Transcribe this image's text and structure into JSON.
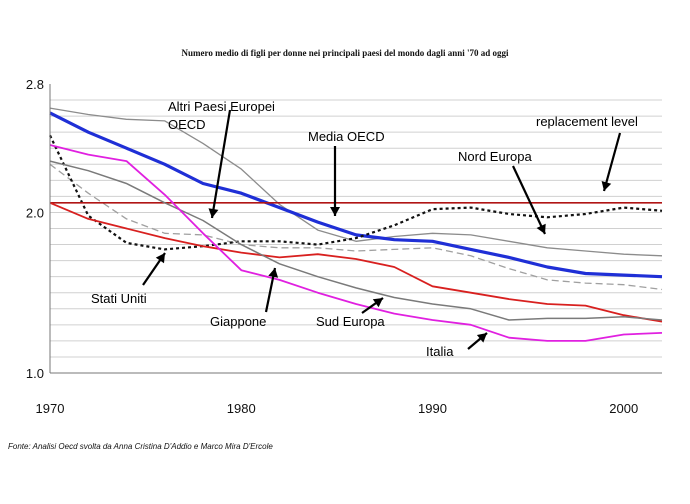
{
  "chart_data": {
    "type": "line",
    "title": "Numero medio di figli per donne nei principali paesi del mondo dagli anni '70 ad oggi",
    "xlabel": "",
    "ylabel": "",
    "xlim": [
      1970,
      2002
    ],
    "ylim": [
      1.0,
      2.8
    ],
    "x_ticks": [
      "1970",
      "1980",
      "1990",
      "2000"
    ],
    "y_ticks": [
      "1.0",
      "2.0",
      "2.8"
    ],
    "grid": true,
    "series": [
      {
        "name": "Altri Paesi Europei OECD",
        "color": "#8c8c8c",
        "width": 1.3,
        "dash": "",
        "x": [
          1970,
          1972,
          1974,
          1976,
          1978,
          1980,
          1982,
          1984,
          1986,
          1988,
          1990,
          1992,
          1994,
          1996,
          1998,
          2000,
          2002
        ],
        "values": [
          2.65,
          2.61,
          2.58,
          2.57,
          2.43,
          2.27,
          2.05,
          1.89,
          1.82,
          1.85,
          1.87,
          1.86,
          1.82,
          1.78,
          1.76,
          1.74,
          1.73
        ]
      },
      {
        "name": "Media OECD",
        "color": "#1f2fd6",
        "width": 3.2,
        "dash": "",
        "x": [
          1970,
          1972,
          1974,
          1976,
          1978,
          1980,
          1982,
          1984,
          1986,
          1988,
          1990,
          1992,
          1994,
          1996,
          1998,
          2000,
          2002
        ],
        "values": [
          2.62,
          2.5,
          2.4,
          2.3,
          2.18,
          2.12,
          2.03,
          1.94,
          1.86,
          1.83,
          1.82,
          1.77,
          1.72,
          1.66,
          1.62,
          1.61,
          1.6
        ]
      },
      {
        "name": "Nord Europa",
        "color": "#a0a0a0",
        "width": 1.3,
        "dash": "7,4",
        "x": [
          1970,
          1972,
          1974,
          1976,
          1978,
          1980,
          1982,
          1984,
          1986,
          1988,
          1990,
          1992,
          1994,
          1996,
          1998,
          2000,
          2002
        ],
        "values": [
          2.3,
          2.12,
          1.96,
          1.87,
          1.86,
          1.8,
          1.78,
          1.78,
          1.76,
          1.77,
          1.78,
          1.73,
          1.65,
          1.58,
          1.56,
          1.55,
          1.52
        ]
      },
      {
        "name": "Stati Uniti",
        "color": "#111111",
        "width": 2.2,
        "dash": "3,3",
        "x": [
          1970,
          1972,
          1974,
          1976,
          1978,
          1980,
          1982,
          1984,
          1986,
          1988,
          1990,
          1992,
          1994,
          1996,
          1998,
          2000,
          2002
        ],
        "values": [
          2.48,
          1.98,
          1.81,
          1.77,
          1.79,
          1.82,
          1.82,
          1.8,
          1.84,
          1.92,
          2.02,
          2.03,
          1.99,
          1.97,
          1.99,
          2.03,
          2.01
        ]
      },
      {
        "name": "replacement level",
        "color": "#b01515",
        "width": 1.6,
        "dash": "",
        "x": [
          1970,
          2002
        ],
        "values": [
          2.06,
          2.06
        ]
      },
      {
        "name": "Giappone",
        "color": "#d8201f",
        "width": 1.8,
        "dash": "",
        "x": [
          1970,
          1972,
          1974,
          1976,
          1978,
          1980,
          1982,
          1984,
          1986,
          1988,
          1990,
          1992,
          1994,
          1996,
          1998,
          2000,
          2002
        ],
        "values": [
          2.06,
          1.96,
          1.9,
          1.84,
          1.79,
          1.75,
          1.72,
          1.74,
          1.71,
          1.66,
          1.54,
          1.5,
          1.46,
          1.43,
          1.42,
          1.36,
          1.32
        ]
      },
      {
        "name": "Sud Europa",
        "color": "#7a7a7a",
        "width": 1.5,
        "dash": "",
        "x": [
          1970,
          1972,
          1974,
          1976,
          1978,
          1980,
          1982,
          1984,
          1986,
          1988,
          1990,
          1992,
          1994,
          1996,
          1998,
          2000,
          2002
        ],
        "values": [
          2.32,
          2.26,
          2.18,
          2.06,
          1.95,
          1.8,
          1.68,
          1.6,
          1.53,
          1.47,
          1.43,
          1.4,
          1.33,
          1.34,
          1.34,
          1.35,
          1.33
        ]
      },
      {
        "name": "Italia",
        "color": "#e020e0",
        "width": 1.8,
        "dash": "",
        "x": [
          1970,
          1972,
          1974,
          1976,
          1978,
          1980,
          1982,
          1984,
          1986,
          1988,
          1990,
          1992,
          1994,
          1996,
          1998,
          2000,
          2002
        ],
        "values": [
          2.42,
          2.36,
          2.32,
          2.11,
          1.87,
          1.64,
          1.58,
          1.5,
          1.43,
          1.37,
          1.33,
          1.3,
          1.22,
          1.2,
          1.2,
          1.24,
          1.25
        ]
      }
    ],
    "annotations": [
      {
        "lines": [
          "Altri Paesi Europei",
          "OECD"
        ]
      },
      {
        "lines": [
          "Media OECD"
        ]
      },
      {
        "lines": [
          "replacement level"
        ]
      },
      {
        "lines": [
          "Nord Europa"
        ]
      },
      {
        "lines": [
          "Stati Uniti"
        ]
      },
      {
        "lines": [
          "Giappone"
        ]
      },
      {
        "lines": [
          "Sud Europa"
        ]
      },
      {
        "lines": [
          "Italia"
        ]
      }
    ]
  },
  "source_note": "Fonte: Analisi Oecd svolta da Anna Cristina D'Addio e Marco Mira D'Ercole"
}
